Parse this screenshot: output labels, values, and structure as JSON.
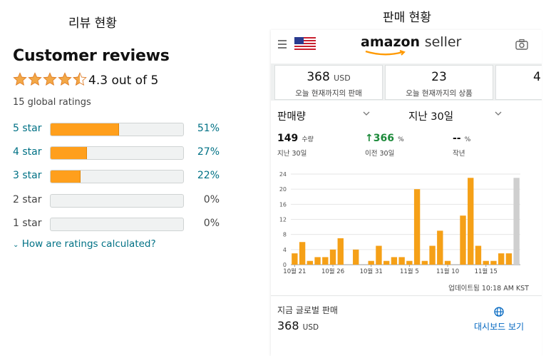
{
  "left": {
    "caption": "리뷰 현황",
    "title": "Customer reviews",
    "rating_text": "4.3 out of 5",
    "rating_value": 4.3,
    "global_ratings": "15 global ratings",
    "rows": [
      {
        "label": "5 star",
        "pct": "51%",
        "value": 0.51
      },
      {
        "label": "4 star",
        "pct": "27%",
        "value": 0.27
      },
      {
        "label": "3 star",
        "pct": "22%",
        "value": 0.22
      },
      {
        "label": "2 star",
        "pct": "0%",
        "value": 0
      },
      {
        "label": "1 star",
        "pct": "0%",
        "value": 0
      }
    ],
    "how_link": "How are ratings calculated?",
    "colors": {
      "star": "#f3a847",
      "bar_fill": "#ff9f1c",
      "link": "#007185"
    }
  },
  "right": {
    "caption": "판매 현황",
    "brand": {
      "amazon": "amazon",
      "seller": "seller"
    },
    "icons": {
      "menu": "menu-icon",
      "flag": "us-flag-icon",
      "camera": "camera-icon",
      "globe": "globe-icon"
    },
    "tiles": [
      {
        "value": "368",
        "unit": "USD",
        "caption": "오늘 현재까지의 판매"
      },
      {
        "value": "23",
        "unit": "",
        "caption": "오늘 현재까지의 상품"
      },
      {
        "value": "4",
        "unit": "",
        "caption": ""
      }
    ],
    "metric_dropdown": "판매량",
    "period_dropdown": "지난 30일",
    "stats": [
      {
        "value": "149",
        "unit": "수량",
        "caption": "지난 30일"
      },
      {
        "value": "↑366",
        "unit": "%",
        "caption": "이전 30일"
      },
      {
        "value": "--",
        "unit": "%",
        "caption": "작년"
      }
    ],
    "updated": "업데이트됨 10:18 AM KST",
    "global_sales_label": "지금 글로벌 판매",
    "global_sales_value": "368",
    "global_sales_unit": "USD",
    "dashboard_link": "대시보드 보기"
  },
  "chart_data": {
    "type": "bar",
    "y_ticks": [
      0,
      4,
      8,
      12,
      16,
      20,
      24
    ],
    "ylim": [
      0,
      24
    ],
    "x_tick_labels": [
      "10월 21",
      "10월 26",
      "10월 31",
      "11월 5",
      "11월 10",
      "11월 15"
    ],
    "x_tick_index": [
      0,
      5,
      10,
      15,
      20,
      25
    ],
    "values": [
      3,
      6,
      1,
      2,
      2,
      4,
      7,
      0,
      4,
      0,
      1,
      5,
      1,
      2,
      2,
      1,
      20,
      1,
      5,
      9,
      1,
      0,
      13,
      23,
      5,
      1,
      1,
      3,
      3,
      23
    ],
    "highlight_last": true,
    "colors": {
      "bar": "#f5a017",
      "last_bar": "#cfcfcf",
      "grid": "#e6e6e6"
    }
  }
}
